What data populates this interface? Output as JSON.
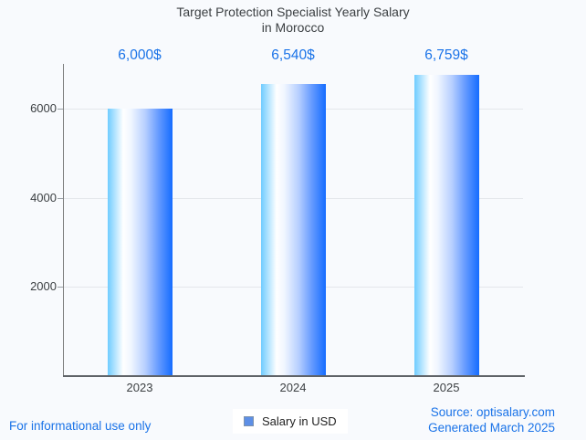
{
  "title": {
    "line1": "Target Protection Specialist Yearly Salary",
    "line2": "in Morocco"
  },
  "chart_data": {
    "type": "bar",
    "title": "Target Protection Specialist Yearly Salary in Morocco",
    "categories": [
      "2023",
      "2024",
      "2025"
    ],
    "series": [
      {
        "name": "Salary in USD",
        "values": [
          6000,
          6540,
          6759
        ]
      }
    ],
    "value_labels": [
      "6,000$",
      "6,540$",
      "6,759$"
    ],
    "xlabel": "",
    "ylabel": "",
    "ylim": [
      0,
      7000
    ],
    "yticks": [
      2000,
      4000,
      6000
    ],
    "grid": true,
    "legend_position": "bottom",
    "colors": {
      "bar_gradient": [
        "#6fccff",
        "#ffffff",
        "#156cff"
      ],
      "value_label": "#1a73e8",
      "axis_text": "#3c4043",
      "gridline": "#e4e7eb",
      "background": "#f8fafd"
    }
  },
  "legend": {
    "label": "Salary in USD",
    "swatch_color": "#5d8fe6"
  },
  "footer": {
    "disclaimer": "For informational use only",
    "source": "Source: optisalary.com",
    "generated": "Generated March 2025"
  }
}
